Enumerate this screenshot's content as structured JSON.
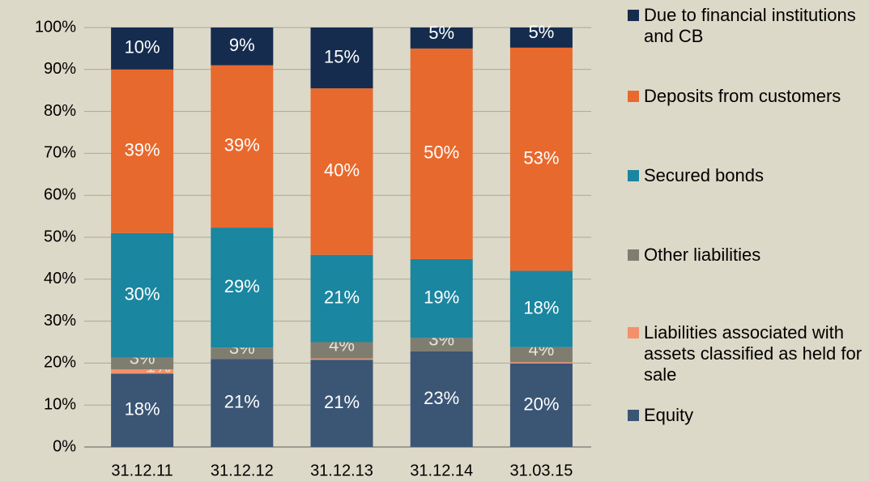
{
  "chart_data": {
    "type": "stacked_bar",
    "categories": [
      "31.12.11",
      "31.12.12",
      "31.12.13",
      "31.12.14",
      "31.03.15"
    ],
    "series": [
      {
        "name": "Equity",
        "color": "#3b5575",
        "values": [
          17.5,
          21,
          20.8,
          22.8,
          19.9
        ],
        "value_labels": [
          "18%",
          "21%",
          "21%",
          "23%",
          "20%"
        ]
      },
      {
        "name": "Liabilities associated with assets classified as held for sale",
        "color": "#f4906a",
        "values": [
          1,
          0,
          0.3,
          0,
          0.3
        ],
        "value_labels": [
          "1%",
          null,
          null,
          null,
          null
        ]
      },
      {
        "name": "Other liabilities",
        "color": "#7f7d70",
        "values": [
          2.8,
          2.7,
          3.9,
          3.2,
          3.6
        ],
        "value_labels": [
          "3%",
          "3%",
          "4%",
          "3%",
          "4%"
        ]
      },
      {
        "name": "Secured bonds",
        "color": "#1a86a0",
        "values": [
          29.7,
          28.6,
          20.8,
          18.8,
          18.2
        ],
        "value_labels": [
          "30%",
          "29%",
          "21%",
          "19%",
          "18%"
        ]
      },
      {
        "name": "Deposits from customers",
        "color": "#e8692d",
        "values": [
          39,
          38.7,
          39.7,
          50.2,
          53.2
        ],
        "value_labels": [
          "39%",
          "39%",
          "40%",
          "50%",
          "53%"
        ]
      },
      {
        "name": "Due to financial institutions and CB",
        "color": "#152c4e",
        "values": [
          10,
          9,
          14.5,
          5,
          4.8
        ],
        "value_labels": [
          "10%",
          "9%",
          "15%",
          "5%",
          "5%"
        ]
      }
    ],
    "ylim": [
      0,
      100
    ],
    "yticks": [
      {
        "value": 0,
        "label": "0%"
      },
      {
        "value": 10,
        "label": "10%"
      },
      {
        "value": 20,
        "label": "20%"
      },
      {
        "value": 30,
        "label": "30%"
      },
      {
        "value": 40,
        "label": "40%"
      },
      {
        "value": 50,
        "label": "50%"
      },
      {
        "value": 60,
        "label": "60%"
      },
      {
        "value": 70,
        "label": "70%"
      },
      {
        "value": 80,
        "label": "80%"
      },
      {
        "value": 90,
        "label": "90%"
      },
      {
        "value": 100,
        "label": "100%"
      }
    ],
    "grid": true,
    "legend": "right"
  }
}
